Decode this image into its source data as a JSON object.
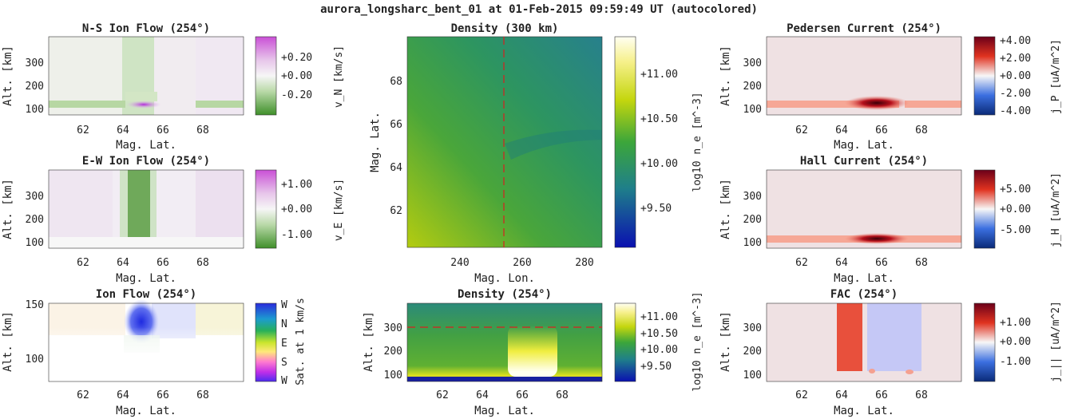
{
  "suptitle": "aurora_longsharc_bent_01 at 01-Feb-2015 09:59:49 UT (autocolored)",
  "chart_data": [
    {
      "id": "ns_flow",
      "type": "heatmap",
      "title": "N-S Ion Flow (254°)",
      "xlabel": "Mag. Lat.",
      "ylabel": "Alt. [km]",
      "x_ticks": [
        "62",
        "64",
        "66",
        "68"
      ],
      "y_ticks": [
        "100",
        "200",
        "300"
      ],
      "xlim": [
        60.2,
        69.8
      ],
      "ylim": [
        80,
        395
      ],
      "colorbar": {
        "label": "v_N [km/s]",
        "ticks": [
          "+0.20",
          "+0.00",
          "-0.20"
        ],
        "colormap": "PRGn"
      },
      "features": [
        {
          "desc": "negative band",
          "lat": [
            64,
            65.5
          ],
          "value": -0.1
        },
        {
          "desc": "low band",
          "alt": 115,
          "value": -0.15
        },
        {
          "desc": "positive spot",
          "lat": 65,
          "alt": 110,
          "value": 0.25
        }
      ]
    },
    {
      "id": "ew_flow",
      "type": "heatmap",
      "title": "E-W Ion Flow (254°)",
      "xlabel": "Mag. Lat.",
      "ylabel": "Alt. [km]",
      "x_ticks": [
        "62",
        "64",
        "66",
        "68"
      ],
      "y_ticks": [
        "100",
        "200",
        "300"
      ],
      "xlim": [
        60.2,
        69.8
      ],
      "ylim": [
        80,
        395
      ],
      "colorbar": {
        "label": "v_E [km/s]",
        "ticks": [
          "+1.00",
          "+0.00",
          "-1.00"
        ],
        "colormap": "PRGn"
      },
      "features": [
        {
          "desc": "westward channel",
          "lat": [
            64.1,
            65.3
          ],
          "value": -0.9
        }
      ]
    },
    {
      "id": "ion_flow",
      "type": "heatmap",
      "title": "Ion Flow (254°)",
      "xlabel": "Mag. Lat.",
      "ylabel": "Alt. [km]",
      "x_ticks": [
        "62",
        "64",
        "66",
        "68"
      ],
      "y_ticks": [
        "100",
        "150"
      ],
      "xlim": [
        60.2,
        69.8
      ],
      "ylim": [
        78,
        150
      ],
      "colorbar": {
        "label": "Sat. at 1 km/s",
        "ticks": [
          "W",
          "N",
          "E",
          "S",
          "W"
        ],
        "colormap": "hue"
      }
    },
    {
      "id": "density_300",
      "type": "heatmap",
      "title": "Density (300 km)",
      "xlabel": "Mag. Lon.",
      "ylabel": "Mag. Lat.",
      "x_ticks": [
        "240",
        "260",
        "280"
      ],
      "y_ticks": [
        "62",
        "64",
        "66",
        "68"
      ],
      "xlim": [
        225,
        286
      ],
      "ylim": [
        60.2,
        69.8
      ],
      "colorbar": {
        "label": "log10 n_e [m^-3]",
        "ticks": [
          "+11.00",
          "+10.50",
          "+10.00",
          "+9.50"
        ],
        "colormap": "viridis-like"
      },
      "cut_lon": 254
    },
    {
      "id": "density_254",
      "type": "heatmap",
      "title": "Density (254°)",
      "xlabel": "Mag. Lat.",
      "ylabel": "Alt. [km]",
      "x_ticks": [
        "62",
        "64",
        "66",
        "68"
      ],
      "y_ticks": [
        "100",
        "200",
        "300"
      ],
      "xlim": [
        60.2,
        69.8
      ],
      "ylim": [
        80,
        395
      ],
      "colorbar": {
        "label": "log10 n_e [m^-3]",
        "ticks": [
          "+11.00",
          "+10.50",
          "+10.00",
          "+9.50"
        ],
        "colormap": "viridis-like"
      },
      "cut_alt": 300
    },
    {
      "id": "pedersen",
      "type": "heatmap",
      "title": "Pedersen Current (254°)",
      "xlabel": "Mag. Lat.",
      "ylabel": "Alt. [km]",
      "x_ticks": [
        "62",
        "64",
        "66",
        "68"
      ],
      "y_ticks": [
        "100",
        "200",
        "300"
      ],
      "xlim": [
        60.2,
        69.8
      ],
      "ylim": [
        80,
        395
      ],
      "colorbar": {
        "label": "j_P [uA/m^2]",
        "ticks": [
          "+4.00",
          "+2.00",
          "+0.00",
          "-2.00",
          "-4.00"
        ],
        "colormap": "RdBu_r"
      }
    },
    {
      "id": "hall",
      "type": "heatmap",
      "title": "Hall Current (254°)",
      "xlabel": "Mag. Lat.",
      "ylabel": "Alt. [km]",
      "x_ticks": [
        "62",
        "64",
        "66",
        "68"
      ],
      "y_ticks": [
        "100",
        "200",
        "300"
      ],
      "xlim": [
        60.2,
        69.8
      ],
      "ylim": [
        80,
        395
      ],
      "colorbar": {
        "label": "j_H [uA/m^2]",
        "ticks": [
          "+5.00",
          "+0.00",
          "-5.00"
        ],
        "colormap": "RdBu_r"
      }
    },
    {
      "id": "fac",
      "type": "heatmap",
      "title": "FAC (254°)",
      "xlabel": "Mag. Lat.",
      "ylabel": "Alt. [km]",
      "x_ticks": [
        "62",
        "64",
        "66",
        "68"
      ],
      "y_ticks": [
        "100",
        "200",
        "300"
      ],
      "xlim": [
        60.2,
        69.8
      ],
      "ylim": [
        80,
        395
      ],
      "colorbar": {
        "label": "j_|| [uA/m^2]",
        "ticks": [
          "+1.00",
          "+0.00",
          "-1.00"
        ],
        "colormap": "RdBu_r"
      },
      "features": [
        {
          "desc": "upward sheet",
          "lat": [
            63.8,
            65
          ],
          "value": 0.9
        },
        {
          "desc": "downward sheet",
          "lat": [
            65.3,
            67.9
          ],
          "value": -0.3
        }
      ]
    }
  ]
}
